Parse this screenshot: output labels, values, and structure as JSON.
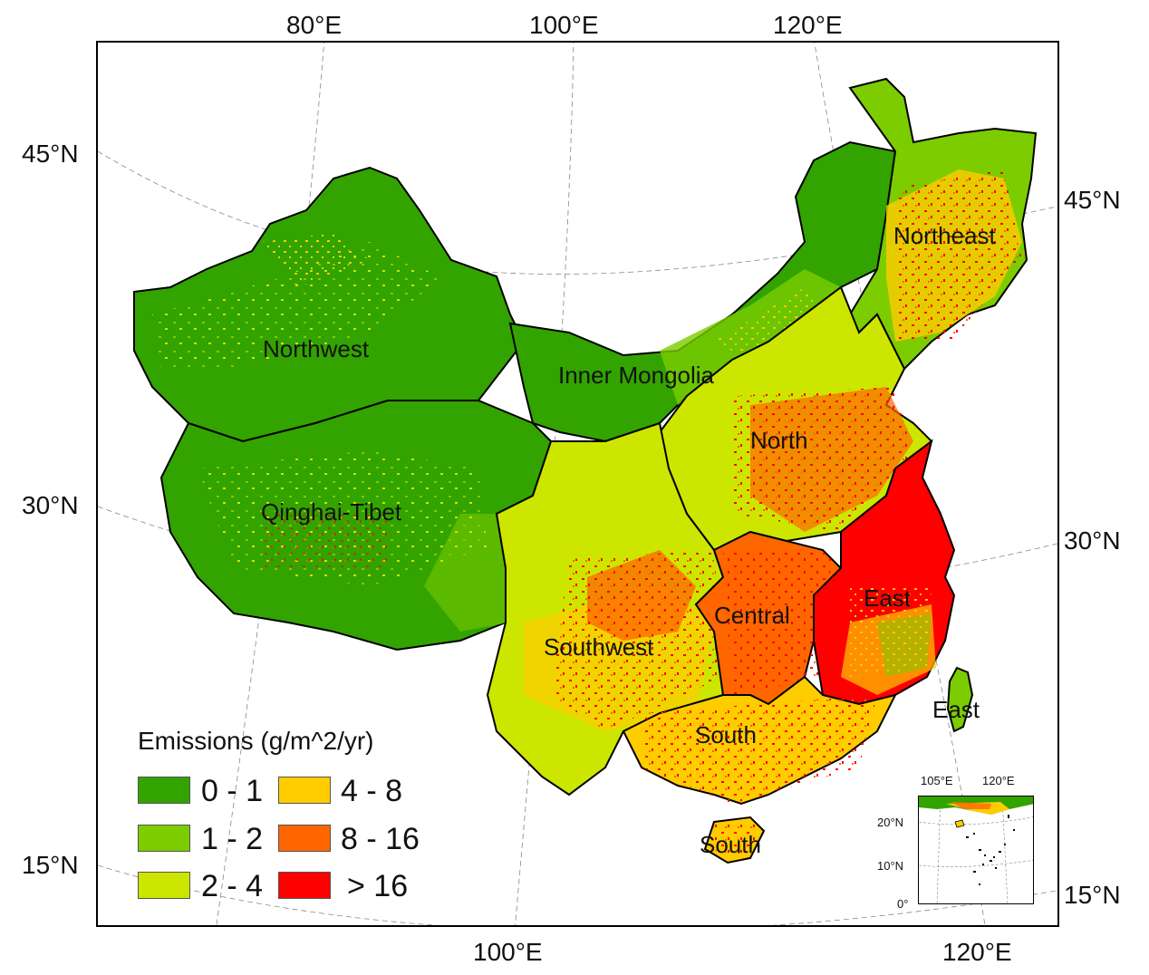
{
  "axes": {
    "top": [
      "80°E",
      "100°E",
      "120°E"
    ],
    "bottom": [
      "100°E",
      "120°E"
    ],
    "left": [
      "45°N",
      "30°N",
      "15°N"
    ],
    "right": [
      "45°N",
      "30°N",
      "15°N"
    ]
  },
  "regions": {
    "northwest": "Northwest",
    "inner_mongolia": "Inner Mongolia",
    "northeast": "Northeast",
    "north": "North",
    "qinghai_tibet": "Qinghai-Tibet",
    "southwest": "Southwest",
    "central": "Central",
    "east": "East",
    "east_taiwan": "East",
    "south": "South",
    "south_hainan": "South"
  },
  "legend": {
    "title": "Emissions (g/m^2/yr)",
    "classes": [
      {
        "label": "0 - 1",
        "color": "#33a300"
      },
      {
        "label": "1 - 2",
        "color": "#7ccc00"
      },
      {
        "label": "2 - 4",
        "color": "#cce600"
      },
      {
        "label": "4 - 8",
        "color": "#ffcc00"
      },
      {
        "label": "8 - 16",
        "color": "#ff6600"
      },
      {
        "label": "> 16",
        "color": "#ff0000"
      }
    ]
  },
  "inset": {
    "top": [
      "105°E",
      "120°E"
    ],
    "left": [
      "20°N",
      "10°N",
      "0°"
    ]
  }
}
